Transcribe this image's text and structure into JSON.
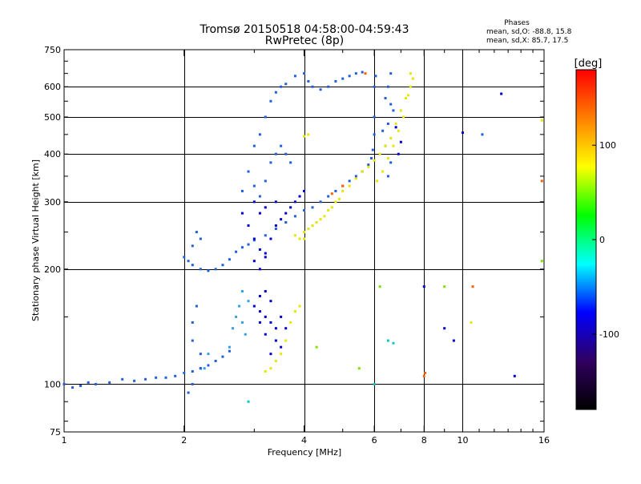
{
  "chart_data": {
    "type": "scatter",
    "title": "Tromsø 20150518 04:58:00-04:59:43",
    "subtitle": "RwPretec (8p)",
    "xlabel": "Frequency [MHz]",
    "ylabel": "Stationary phase Virtual Height [km]",
    "x_scale": "log",
    "y_scale": "log",
    "xlim": [
      1,
      16
    ],
    "ylim": [
      75,
      750
    ],
    "x_ticks": [
      1,
      2,
      4,
      6,
      8,
      10,
      16
    ],
    "y_ticks": [
      75,
      100,
      200,
      300,
      400,
      500,
      600,
      750
    ],
    "grid": true,
    "phase_stats": {
      "heading": "Phases",
      "line_o": "mean, sd,O: -88.8, 15.8",
      "line_x": "mean, sd,X: 85.7, 17.5"
    },
    "colorbar": {
      "label": "[deg]",
      "range": [
        -180,
        180
      ],
      "ticks": [
        100,
        0,
        -100
      ],
      "colors": [
        "#ff0000",
        "#ff8000",
        "#ffff00",
        "#00ff00",
        "#00ffff",
        "#0000ff",
        "#300060",
        "#000000"
      ]
    },
    "series": [
      {
        "color": "#1f5fd8",
        "points": [
          [
            1.0,
            100
          ],
          [
            1.05,
            98
          ],
          [
            1.1,
            99
          ],
          [
            1.15,
            101
          ],
          [
            1.2,
            100
          ],
          [
            1.3,
            101
          ],
          [
            1.4,
            103
          ],
          [
            1.5,
            102
          ],
          [
            1.6,
            103
          ],
          [
            1.7,
            104
          ],
          [
            1.8,
            104
          ],
          [
            1.9,
            105
          ],
          [
            2.0,
            107
          ],
          [
            2.1,
            108
          ],
          [
            2.2,
            110
          ],
          [
            2.3,
            112
          ],
          [
            2.4,
            115
          ],
          [
            2.5,
            118
          ],
          [
            2.6,
            122
          ],
          [
            2.0,
            215
          ],
          [
            2.05,
            210
          ],
          [
            2.1,
            205
          ],
          [
            2.2,
            200
          ],
          [
            2.3,
            198
          ],
          [
            2.4,
            200
          ],
          [
            2.5,
            205
          ],
          [
            2.6,
            212
          ],
          [
            2.7,
            222
          ],
          [
            2.8,
            228
          ],
          [
            2.9,
            232
          ],
          [
            3.0,
            238
          ],
          [
            3.2,
            245
          ],
          [
            3.4,
            255
          ],
          [
            3.6,
            265
          ],
          [
            3.8,
            275
          ],
          [
            4.0,
            285
          ],
          [
            4.2,
            290
          ],
          [
            4.4,
            300
          ],
          [
            4.6,
            310
          ],
          [
            4.8,
            320
          ],
          [
            5.0,
            330
          ],
          [
            5.2,
            340
          ],
          [
            5.4,
            350
          ],
          [
            5.6,
            360
          ],
          [
            5.8,
            375
          ],
          [
            5.9,
            390
          ],
          [
            5.95,
            410
          ],
          [
            6.0,
            450
          ],
          [
            6.0,
            500
          ],
          [
            6.0,
            600
          ],
          [
            6.05,
            640
          ],
          [
            2.8,
            320
          ],
          [
            2.9,
            360
          ],
          [
            3.0,
            330
          ],
          [
            3.1,
            310
          ],
          [
            3.2,
            340
          ],
          [
            3.3,
            380
          ],
          [
            3.4,
            400
          ],
          [
            3.5,
            420
          ],
          [
            3.6,
            400
          ],
          [
            3.7,
            380
          ],
          [
            3.0,
            420
          ],
          [
            3.1,
            450
          ],
          [
            3.2,
            500
          ],
          [
            3.3,
            550
          ],
          [
            3.4,
            580
          ],
          [
            3.5,
            600
          ],
          [
            3.6,
            610
          ],
          [
            3.8,
            640
          ],
          [
            4.0,
            650
          ],
          [
            4.1,
            620
          ],
          [
            4.2,
            600
          ],
          [
            4.4,
            590
          ],
          [
            4.6,
            600
          ],
          [
            4.8,
            620
          ],
          [
            5.0,
            630
          ],
          [
            5.2,
            640
          ],
          [
            5.4,
            650
          ],
          [
            5.6,
            655
          ],
          [
            2.1,
            130
          ],
          [
            2.1,
            145
          ],
          [
            2.15,
            160
          ],
          [
            2.2,
            120
          ],
          [
            2.2,
            110
          ],
          [
            2.1,
            100
          ],
          [
            2.05,
            95
          ],
          [
            2.15,
            250
          ],
          [
            2.2,
            240
          ],
          [
            2.1,
            230
          ],
          [
            6.4,
            420
          ],
          [
            6.5,
            480
          ],
          [
            6.6,
            540
          ],
          [
            6.5,
            600
          ],
          [
            6.6,
            650
          ],
          [
            6.4,
            560
          ],
          [
            6.7,
            520
          ],
          [
            6.3,
            460
          ],
          [
            6.6,
            380
          ],
          [
            6.5,
            350
          ],
          [
            11.2,
            450
          ]
        ]
      },
      {
        "color": "#0000cc",
        "points": [
          [
            2.8,
            280
          ],
          [
            2.9,
            260
          ],
          [
            3.0,
            240
          ],
          [
            3.1,
            225
          ],
          [
            3.2,
            215
          ],
          [
            3.0,
            210
          ],
          [
            3.1,
            200
          ],
          [
            3.2,
            220
          ],
          [
            3.3,
            240
          ],
          [
            3.4,
            260
          ],
          [
            3.5,
            270
          ],
          [
            3.6,
            280
          ],
          [
            3.7,
            290
          ],
          [
            3.8,
            300
          ],
          [
            3.9,
            310
          ],
          [
            4.0,
            320
          ],
          [
            3.2,
            290
          ],
          [
            3.4,
            300
          ],
          [
            3.0,
            300
          ],
          [
            3.1,
            280
          ],
          [
            3.0,
            160
          ],
          [
            3.1,
            155
          ],
          [
            3.2,
            150
          ],
          [
            3.3,
            145
          ],
          [
            3.4,
            140
          ],
          [
            3.5,
            150
          ],
          [
            3.3,
            165
          ],
          [
            3.1,
            170
          ],
          [
            3.2,
            135
          ],
          [
            3.4,
            130
          ],
          [
            3.6,
            140
          ],
          [
            3.5,
            125
          ],
          [
            3.3,
            120
          ],
          [
            3.2,
            175
          ],
          [
            3.1,
            145
          ],
          [
            9.0,
            140
          ],
          [
            9.5,
            130
          ],
          [
            8.0,
            180
          ],
          [
            13.5,
            105
          ],
          [
            10.0,
            455
          ],
          [
            12.5,
            575
          ],
          [
            6.8,
            470
          ],
          [
            7.0,
            430
          ],
          [
            6.9,
            400
          ]
        ]
      },
      {
        "color": "#e6e600",
        "points": [
          [
            3.8,
            245
          ],
          [
            3.9,
            240
          ],
          [
            4.0,
            250
          ],
          [
            4.2,
            260
          ],
          [
            4.4,
            270
          ],
          [
            4.6,
            285
          ],
          [
            4.8,
            300
          ],
          [
            5.0,
            320
          ],
          [
            5.2,
            330
          ],
          [
            5.4,
            345
          ],
          [
            5.6,
            360
          ],
          [
            5.8,
            370
          ],
          [
            6.0,
            385
          ],
          [
            6.2,
            400
          ],
          [
            6.4,
            420
          ],
          [
            6.6,
            440
          ],
          [
            6.8,
            480
          ],
          [
            7.0,
            520
          ],
          [
            7.2,
            560
          ],
          [
            7.4,
            600
          ],
          [
            7.5,
            630
          ],
          [
            7.4,
            650
          ],
          [
            7.3,
            570
          ],
          [
            7.1,
            500
          ],
          [
            6.9,
            460
          ],
          [
            6.7,
            420
          ],
          [
            6.5,
            390
          ],
          [
            6.3,
            360
          ],
          [
            6.1,
            340
          ],
          [
            4.0,
            240
          ],
          [
            4.1,
            255
          ],
          [
            4.3,
            265
          ],
          [
            4.5,
            275
          ],
          [
            4.7,
            290
          ],
          [
            4.9,
            305
          ],
          [
            3.3,
            110
          ],
          [
            3.4,
            115
          ],
          [
            3.5,
            120
          ],
          [
            3.6,
            130
          ],
          [
            3.7,
            145
          ],
          [
            3.8,
            155
          ],
          [
            3.9,
            160
          ],
          [
            3.2,
            108
          ],
          [
            4.0,
            445
          ],
          [
            4.1,
            450
          ],
          [
            10.5,
            145
          ],
          [
            15.8,
            490
          ]
        ]
      },
      {
        "color": "#33a0e6",
        "points": [
          [
            2.7,
            150
          ],
          [
            2.75,
            160
          ],
          [
            2.8,
            145
          ],
          [
            2.85,
            135
          ],
          [
            2.8,
            175
          ],
          [
            2.9,
            165
          ],
          [
            2.6,
            125
          ],
          [
            2.65,
            140
          ],
          [
            2.3,
            120
          ],
          [
            2.25,
            110
          ]
        ]
      },
      {
        "color": "#ff6000",
        "points": [
          [
            4.7,
            315
          ],
          [
            5.0,
            330
          ],
          [
            8.0,
            105
          ],
          [
            8.05,
            107
          ],
          [
            5.7,
            650
          ],
          [
            10.6,
            180
          ],
          [
            15.8,
            340
          ]
        ]
      },
      {
        "color": "#80e000",
        "points": [
          [
            6.2,
            180
          ],
          [
            9.0,
            180
          ],
          [
            4.3,
            125
          ],
          [
            5.5,
            110
          ],
          [
            15.8,
            210
          ]
        ]
      },
      {
        "color": "#00c8c8",
        "points": [
          [
            2.9,
            90
          ],
          [
            6.5,
            130
          ],
          [
            6.0,
            100
          ],
          [
            6.7,
            128
          ]
        ]
      }
    ]
  }
}
